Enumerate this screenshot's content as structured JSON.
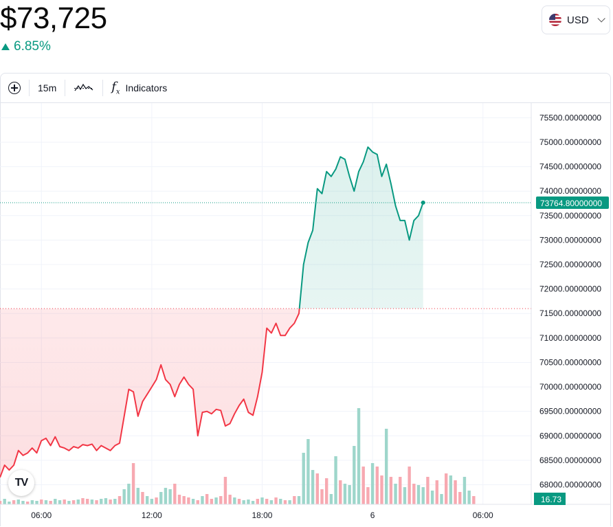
{
  "header": {
    "price": "$73,725",
    "change": "6.85%",
    "currency": "USD",
    "currency_flag": "us-flag-icon"
  },
  "toolbar": {
    "add_icon": "plus-circle-icon",
    "interval": "15m",
    "chart_type_icon": "line-chart-icon",
    "indicators_label": "Indicators"
  },
  "logo": "TV",
  "colors": {
    "up": "#089981",
    "down": "#f23645",
    "up_volume": "#9ed6cb",
    "down_volume": "#f7a9b1",
    "grid": "#f0f3fa"
  },
  "chart_data": {
    "type": "line",
    "subtype": "baseline",
    "baseline": 71600,
    "ylim": [
      67600,
      75800
    ],
    "y_ticks": [
      68000,
      68500,
      69000,
      69500,
      70000,
      70500,
      71000,
      71500,
      72000,
      72500,
      73000,
      73500,
      74000,
      74500,
      75000,
      75500
    ],
    "y_tick_labels": [
      "68000.00000000",
      "68500.00000000",
      "69000.00000000",
      "69500.00000000",
      "70000.00000000",
      "70500.00000000",
      "71000.00000000",
      "71500.00000000",
      "72000.00000000",
      "72500.00000000",
      "73000.00000000",
      "73500.00000000",
      "74000.00000000",
      "74500.00000000",
      "75000.00000000",
      "75500.00000000"
    ],
    "x_ticks": [
      {
        "label": "06:00",
        "x": 24
      },
      {
        "label": "12:00",
        "x": 48
      },
      {
        "label": "18:00",
        "x": 72
      },
      {
        "label": "6",
        "x": 96
      },
      {
        "label": "06:00",
        "x": 120
      }
    ],
    "xlim": [
      15,
      130.5
    ],
    "last_price_label": "73764.80000000",
    "last_price": 73764.8,
    "volume_label": "16.73",
    "grid": true,
    "price": [
      [
        15,
        68150
      ],
      [
        16,
        68400
      ],
      [
        17,
        68300
      ],
      [
        18,
        68400
      ],
      [
        19,
        68700
      ],
      [
        20,
        68600
      ],
      [
        21,
        68650
      ],
      [
        22,
        68750
      ],
      [
        23,
        68650
      ],
      [
        24,
        68900
      ],
      [
        25,
        68950
      ],
      [
        26,
        68800
      ],
      [
        27,
        68980
      ],
      [
        28,
        68780
      ],
      [
        29,
        68750
      ],
      [
        30,
        68700
      ],
      [
        31,
        68780
      ],
      [
        32,
        68750
      ],
      [
        33,
        68820
      ],
      [
        34,
        68800
      ],
      [
        35,
        68830
      ],
      [
        36,
        68700
      ],
      [
        37,
        68800
      ],
      [
        38,
        68750
      ],
      [
        39,
        68700
      ],
      [
        40,
        68800
      ],
      [
        41,
        68850
      ],
      [
        42,
        69400
      ],
      [
        43,
        69950
      ],
      [
        44,
        69900
      ],
      [
        45,
        69400
      ],
      [
        46,
        69700
      ],
      [
        47,
        69850
      ],
      [
        48,
        70000
      ],
      [
        49,
        70150
      ],
      [
        50,
        70450
      ],
      [
        51,
        70150
      ],
      [
        52,
        70050
      ],
      [
        53,
        69800
      ],
      [
        54,
        70050
      ],
      [
        55,
        70200
      ],
      [
        56,
        70050
      ],
      [
        57,
        69950
      ],
      [
        58,
        69000
      ],
      [
        59,
        69480
      ],
      [
        60,
        69500
      ],
      [
        61,
        69450
      ],
      [
        62,
        69540
      ],
      [
        63,
        69520
      ],
      [
        64,
        69200
      ],
      [
        65,
        69250
      ],
      [
        66,
        69450
      ],
      [
        67,
        69620
      ],
      [
        68,
        69750
      ],
      [
        69,
        69480
      ],
      [
        70,
        69420
      ],
      [
        71,
        69800
      ],
      [
        72,
        70300
      ],
      [
        73,
        71200
      ],
      [
        74,
        71100
      ],
      [
        75,
        71300
      ],
      [
        76,
        71050
      ],
      [
        77,
        71050
      ],
      [
        78,
        71200
      ],
      [
        79,
        71300
      ],
      [
        80,
        71500
      ],
      [
        81,
        72500
      ],
      [
        82,
        72950
      ],
      [
        83,
        73200
      ],
      [
        84,
        74050
      ],
      [
        85,
        73950
      ],
      [
        86,
        74400
      ],
      [
        87,
        74300
      ],
      [
        88,
        74450
      ],
      [
        89,
        74700
      ],
      [
        90,
        74650
      ],
      [
        91,
        74300
      ],
      [
        92,
        74000
      ],
      [
        93,
        74400
      ],
      [
        94,
        74600
      ],
      [
        95,
        74900
      ],
      [
        96,
        74800
      ],
      [
        97,
        74750
      ],
      [
        98,
        74300
      ],
      [
        99,
        74550
      ],
      [
        100,
        74150
      ],
      [
        101,
        73700
      ],
      [
        102,
        73400
      ],
      [
        103,
        73400
      ],
      [
        104,
        73000
      ],
      [
        105,
        73400
      ],
      [
        106,
        73500
      ],
      [
        107,
        73765
      ]
    ],
    "volume": [
      [
        15,
        5,
        "d"
      ],
      [
        16,
        8,
        "u"
      ],
      [
        17,
        4,
        "u"
      ],
      [
        18,
        6,
        "d"
      ],
      [
        19,
        7,
        "u"
      ],
      [
        20,
        5,
        "u"
      ],
      [
        21,
        4,
        "d"
      ],
      [
        22,
        6,
        "u"
      ],
      [
        23,
        5,
        "u"
      ],
      [
        24,
        7,
        "d"
      ],
      [
        25,
        6,
        "u"
      ],
      [
        26,
        5,
        "d"
      ],
      [
        27,
        8,
        "u"
      ],
      [
        28,
        6,
        "u"
      ],
      [
        29,
        7,
        "d"
      ],
      [
        30,
        5,
        "u"
      ],
      [
        31,
        6,
        "d"
      ],
      [
        32,
        7,
        "u"
      ],
      [
        33,
        9,
        "d"
      ],
      [
        34,
        8,
        "d"
      ],
      [
        35,
        7,
        "u"
      ],
      [
        36,
        6,
        "d"
      ],
      [
        37,
        8,
        "u"
      ],
      [
        38,
        9,
        "u"
      ],
      [
        39,
        7,
        "d"
      ],
      [
        40,
        8,
        "u"
      ],
      [
        41,
        12,
        "d"
      ],
      [
        42,
        22,
        "u"
      ],
      [
        43,
        30,
        "u"
      ],
      [
        44,
        60,
        "d"
      ],
      [
        45,
        24,
        "u"
      ],
      [
        46,
        18,
        "d"
      ],
      [
        47,
        12,
        "u"
      ],
      [
        48,
        8,
        "u"
      ],
      [
        49,
        10,
        "d"
      ],
      [
        50,
        18,
        "u"
      ],
      [
        51,
        24,
        "u"
      ],
      [
        52,
        22,
        "u"
      ],
      [
        53,
        30,
        "d"
      ],
      [
        54,
        14,
        "d"
      ],
      [
        55,
        12,
        "d"
      ],
      [
        56,
        10,
        "d"
      ],
      [
        57,
        8,
        "u"
      ],
      [
        58,
        6,
        "d"
      ],
      [
        59,
        12,
        "u"
      ],
      [
        60,
        15,
        "d"
      ],
      [
        61,
        8,
        "d"
      ],
      [
        62,
        10,
        "u"
      ],
      [
        63,
        12,
        "d"
      ],
      [
        64,
        40,
        "d"
      ],
      [
        65,
        14,
        "d"
      ],
      [
        66,
        10,
        "u"
      ],
      [
        67,
        8,
        "d"
      ],
      [
        68,
        6,
        "u"
      ],
      [
        69,
        7,
        "u"
      ],
      [
        70,
        5,
        "u"
      ],
      [
        71,
        8,
        "d"
      ],
      [
        72,
        10,
        "u"
      ],
      [
        73,
        8,
        "d"
      ],
      [
        74,
        6,
        "u"
      ],
      [
        75,
        10,
        "d"
      ],
      [
        76,
        8,
        "u"
      ],
      [
        77,
        6,
        "d"
      ],
      [
        78,
        6,
        "u"
      ],
      [
        79,
        12,
        "d"
      ],
      [
        80,
        12,
        "u"
      ],
      [
        81,
        75,
        "u"
      ],
      [
        82,
        95,
        "u"
      ],
      [
        83,
        50,
        "u"
      ],
      [
        84,
        45,
        "d"
      ],
      [
        85,
        22,
        "d"
      ],
      [
        86,
        38,
        "d"
      ],
      [
        87,
        15,
        "u"
      ],
      [
        88,
        70,
        "u"
      ],
      [
        89,
        35,
        "d"
      ],
      [
        90,
        30,
        "u"
      ],
      [
        91,
        28,
        "u"
      ],
      [
        92,
        85,
        "u"
      ],
      [
        93,
        140,
        "u"
      ],
      [
        94,
        55,
        "d"
      ],
      [
        95,
        25,
        "d"
      ],
      [
        96,
        60,
        "u"
      ],
      [
        97,
        55,
        "d"
      ],
      [
        98,
        42,
        "d"
      ],
      [
        99,
        110,
        "u"
      ],
      [
        100,
        40,
        "d"
      ],
      [
        101,
        30,
        "u"
      ],
      [
        102,
        40,
        "d"
      ],
      [
        103,
        25,
        "u"
      ],
      [
        104,
        55,
        "d"
      ],
      [
        105,
        30,
        "d"
      ],
      [
        106,
        28,
        "u"
      ],
      [
        107,
        25,
        "u"
      ],
      [
        108,
        40,
        "d"
      ],
      [
        109,
        20,
        "u"
      ],
      [
        110,
        35,
        "d"
      ],
      [
        111,
        15,
        "u"
      ],
      [
        112,
        45,
        "d"
      ],
      [
        113,
        42,
        "u"
      ],
      [
        114,
        35,
        "d"
      ],
      [
        115,
        18,
        "d"
      ],
      [
        116,
        40,
        "u"
      ],
      [
        117,
        20,
        "u"
      ],
      [
        118,
        12,
        "d"
      ]
    ]
  }
}
